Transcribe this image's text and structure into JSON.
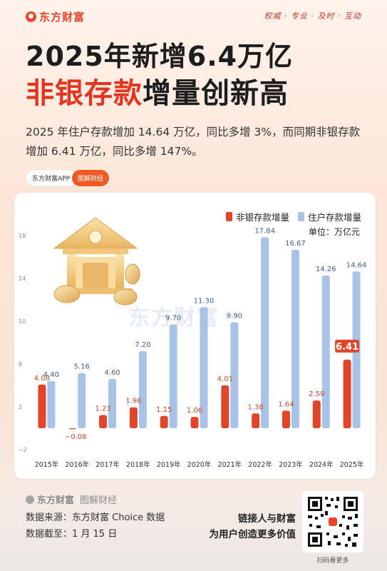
{
  "header": {
    "logo_text": "东方财富",
    "slogan": "权威 · 专业 · 及时 · 互动"
  },
  "title": {
    "line1": "2025年新增6.4万亿",
    "line2_highlight": "非银存款",
    "line2_rest": "增量创新高"
  },
  "description": "2025 年住户存款增加 14.64 万亿，同比多增 3%，而同期非银存款增加 6.41 万亿，同比多增 147%。",
  "tags": {
    "app": "东方财富APP",
    "tujie": "图解财经"
  },
  "watermark": "东方财富",
  "chart_data": {
    "type": "bar",
    "categories": [
      "2015年",
      "2016年",
      "2017年",
      "2018年",
      "2019年",
      "2020年",
      "2021年",
      "2022年",
      "2023年",
      "2024年",
      "2025年"
    ],
    "series": [
      {
        "name": "非银存款增量",
        "values": [
          4.08,
          -0.08,
          1.23,
          1.96,
          1.15,
          1.06,
          4.01,
          1.38,
          1.64,
          2.59,
          6.41
        ],
        "color": "#e0462a"
      },
      {
        "name": "住户存款增量",
        "values": [
          4.4,
          5.16,
          4.6,
          7.2,
          9.7,
          11.3,
          9.9,
          17.84,
          16.67,
          14.26,
          14.64
        ],
        "color": "#a9c3e6"
      }
    ],
    "value_labels": {
      "非银存款增量": [
        "4.08",
        "−0.08",
        "1.23",
        "1.96",
        "1.15",
        "1.06",
        "4.01",
        "1.38",
        "1.64",
        "2.59",
        "6.41"
      ],
      "住户存款增量": [
        "4.40",
        "5.16",
        "4.60",
        "7.20",
        "9.70",
        "11.30",
        "9.90",
        "17.84",
        "16.67",
        "14.26",
        "14.64"
      ]
    },
    "highlight_index": 10,
    "yticks": [
      "−2",
      "2",
      "6",
      "10",
      "14",
      "18"
    ],
    "ytick_values": [
      -2,
      2,
      6,
      10,
      14,
      18
    ],
    "ylim": [
      -2,
      18
    ],
    "unit": "单位：万亿元",
    "legend_position": "top-right",
    "grid": false
  },
  "footer": {
    "brand": "东方财富",
    "brand_sub": "图解财经",
    "source": "数据来源：东方财富 Choice 数据",
    "cutoff": "数据截至：1 月 15 日",
    "slogan_line1": "链接人与财富",
    "slogan_line2": "为用户创造更多价值",
    "qr_caption": "扫码看更多"
  }
}
